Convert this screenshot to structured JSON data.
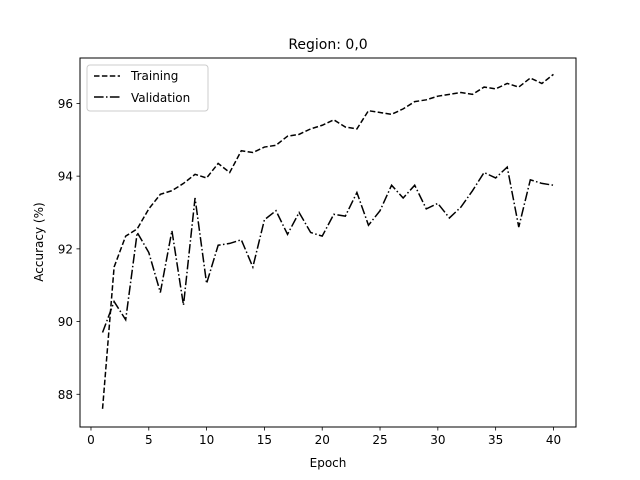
{
  "chart_data": {
    "type": "line",
    "title": "Region: 0,0",
    "xlabel": "Epoch",
    "ylabel": "Accuracy (%)",
    "xlim": [
      -0.95,
      41.95
    ],
    "ylim": [
      87.1,
      97.25
    ],
    "xticks": [
      0,
      5,
      10,
      15,
      20,
      25,
      30,
      35,
      40
    ],
    "yticks": [
      88,
      90,
      92,
      94,
      96
    ],
    "grid": false,
    "legend_position": "top-left",
    "x": [
      1,
      2,
      3,
      4,
      5,
      6,
      7,
      8,
      9,
      10,
      11,
      12,
      13,
      14,
      15,
      16,
      17,
      18,
      19,
      20,
      21,
      22,
      23,
      24,
      25,
      26,
      27,
      28,
      29,
      30,
      31,
      32,
      33,
      34,
      35,
      36,
      37,
      38,
      39,
      40
    ],
    "series": [
      {
        "name": "Training",
        "dash": "dashed",
        "color": "#000000",
        "values": [
          87.6,
          91.5,
          92.35,
          92.55,
          93.1,
          93.5,
          93.6,
          93.8,
          94.05,
          93.95,
          94.35,
          94.1,
          94.7,
          94.65,
          94.8,
          94.85,
          95.1,
          95.15,
          95.3,
          95.4,
          95.55,
          95.35,
          95.3,
          95.8,
          95.75,
          95.7,
          95.85,
          96.05,
          96.1,
          96.2,
          96.25,
          96.3,
          96.25,
          96.45,
          96.4,
          96.55,
          96.45,
          96.7,
          96.55,
          96.8
        ]
      },
      {
        "name": "Validation",
        "dash": "dashdot",
        "color": "#000000",
        "values": [
          89.7,
          90.55,
          90.05,
          92.45,
          91.9,
          90.8,
          92.5,
          90.45,
          93.4,
          91.05,
          92.1,
          92.15,
          92.25,
          91.5,
          92.8,
          93.05,
          92.4,
          93.0,
          92.45,
          92.35,
          92.95,
          92.9,
          93.55,
          92.65,
          93.05,
          93.75,
          93.4,
          93.75,
          93.1,
          93.25,
          92.85,
          93.15,
          93.6,
          94.1,
          93.95,
          94.25,
          92.6,
          93.9,
          93.8,
          93.75
        ]
      }
    ]
  }
}
